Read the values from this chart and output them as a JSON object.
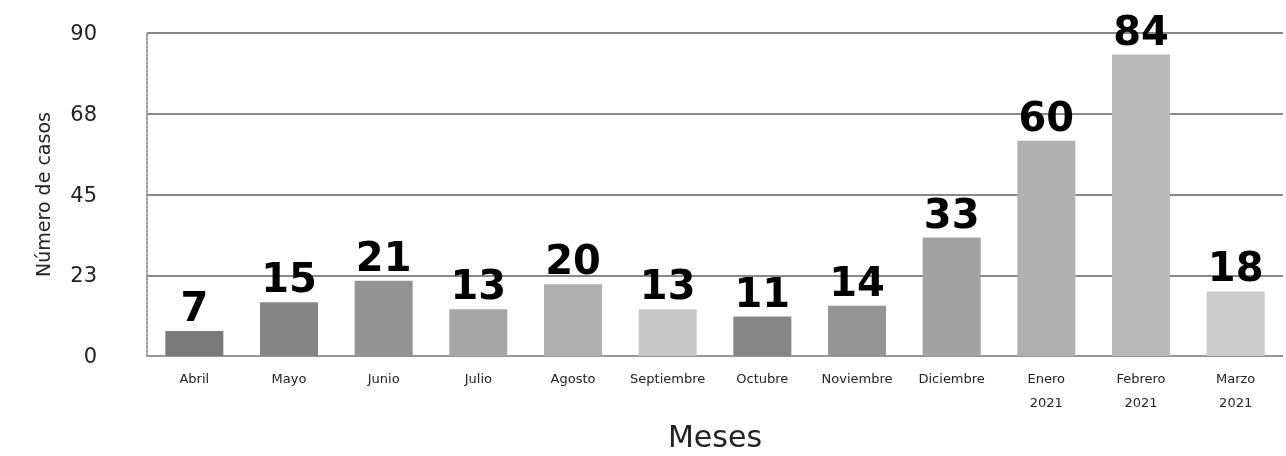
{
  "chart_data": {
    "type": "bar",
    "xlabel": "Meses",
    "ylabel": "Número de casos",
    "categories": [
      "Abril",
      "Mayo",
      "Junio",
      "Julio",
      "Agosto",
      "Septiembre",
      "Octubre",
      "Noviembre",
      "Diciembre",
      "Enero\n2021",
      "Febrero\n2021",
      "Marzo\n2021"
    ],
    "values": [
      7,
      15,
      21,
      13,
      20,
      13,
      11,
      14,
      33,
      60,
      84,
      18
    ],
    "colors": [
      "#7a7a7a",
      "#858585",
      "#949494",
      "#a6a6a6",
      "#b0b0b0",
      "#c8c8c8",
      "#878787",
      "#959595",
      "#a2a2a2",
      "#b0b0b0",
      "#b9b9b9",
      "#cbcbcb"
    ],
    "ylim": [
      0,
      90
    ],
    "yticks": [
      0,
      {
        "value": 22.5,
        "label": "23"
      },
      45,
      {
        "value": 67.5,
        "label": "68"
      },
      90
    ],
    "grid": "y",
    "data_labels": true
  }
}
